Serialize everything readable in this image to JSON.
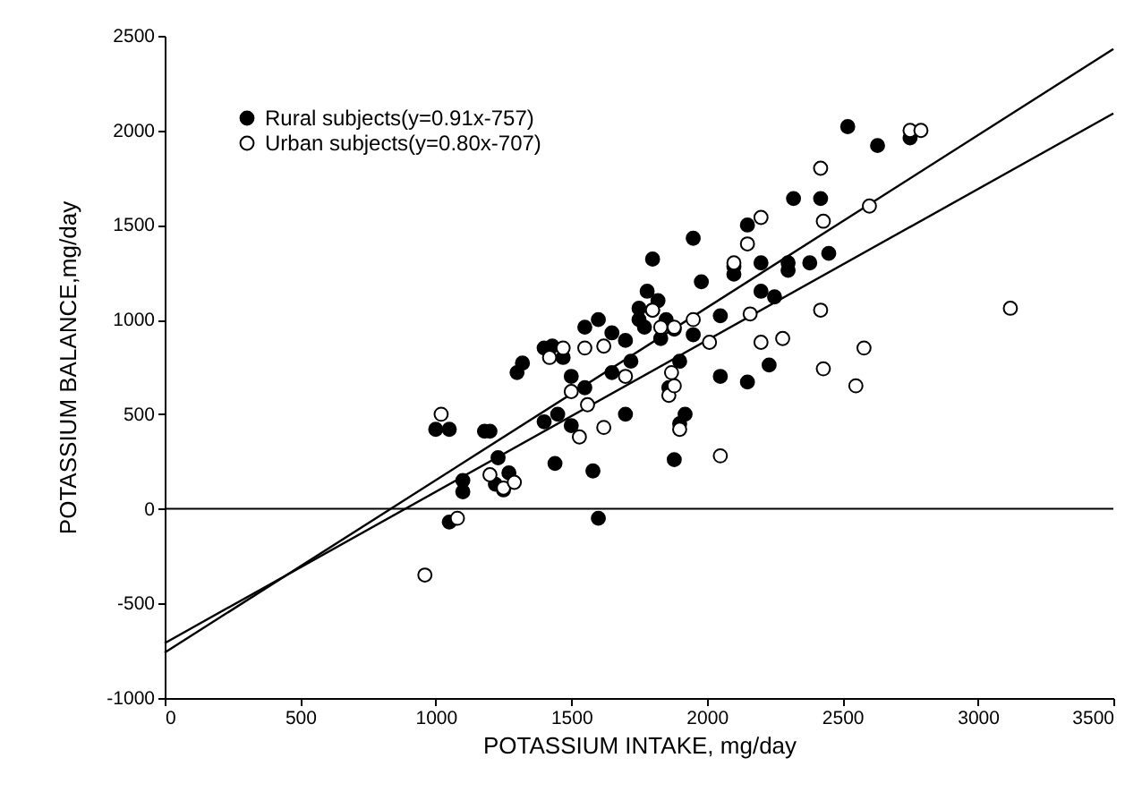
{
  "chart_data": {
    "type": "scatter",
    "xlabel": "POTASSIUM  INTAKE, mg/day",
    "ylabel": "POTASSIUM BALANCE,mg/day",
    "xlim": [
      0,
      3500
    ],
    "xticks": [
      0,
      500,
      1000,
      1500,
      2000,
      2500,
      3000,
      3500
    ],
    "ylim": [
      -1000,
      2500
    ],
    "yticks": [
      -1000,
      -500,
      0,
      500,
      1000,
      1500,
      2000,
      2500
    ],
    "grid": false,
    "legend": "top left",
    "marker": "circle",
    "ref_lines": [
      {
        "axis": "y",
        "value": 0
      }
    ],
    "series": [
      {
        "name": "Rural subjects(y=0.91x-757)",
        "color": "#000000",
        "x": [
          1000,
          1050,
          1180,
          1200,
          1100,
          1100,
          1050,
          1230,
          1270,
          1220,
          1320,
          1300,
          1400,
          1430,
          1470,
          1450,
          1440,
          1500,
          1550,
          1600,
          1580,
          1650,
          1700,
          1750,
          1780,
          1800,
          1770,
          1720,
          1800,
          1850,
          1830,
          1880,
          1900,
          1860,
          1900,
          1920,
          1950,
          1980,
          2050,
          2100,
          2150,
          2200,
          2250,
          2300,
          2320,
          2420,
          2200,
          2380,
          2450,
          2520,
          2630,
          2750,
          2150,
          2230,
          1600,
          1550,
          1650,
          1700,
          1400,
          1250,
          1500,
          1880,
          1950,
          2050,
          1820,
          1750,
          2100,
          2300
        ],
        "values": [
          420,
          420,
          410,
          410,
          90,
          150,
          -70,
          270,
          190,
          130,
          770,
          720,
          850,
          860,
          800,
          500,
          240,
          700,
          640,
          -50,
          200,
          930,
          890,
          1000,
          1150,
          1320,
          960,
          780,
          1050,
          1000,
          900,
          950,
          780,
          640,
          450,
          500,
          1430,
          1200,
          1020,
          1240,
          1500,
          1150,
          1120,
          1300,
          1640,
          1640,
          1300,
          1300,
          1350,
          2020,
          1920,
          1960,
          670,
          760,
          1000,
          960,
          720,
          500,
          460,
          100,
          440,
          260,
          920,
          700,
          1100,
          1060,
          1280,
          1260
        ]
      },
      {
        "name": "Urban subjects(y=0.80x-707)",
        "color": "#ffffff",
        "x": [
          960,
          1080,
          1020,
          1250,
          1200,
          1290,
          1420,
          1470,
          1550,
          1560,
          1530,
          1500,
          1620,
          1700,
          1800,
          1830,
          1860,
          1870,
          1900,
          1880,
          1950,
          2050,
          2010,
          2100,
          2160,
          2200,
          2150,
          2200,
          2280,
          2420,
          2430,
          2550,
          2580,
          2430,
          2420,
          2600,
          2750,
          2790,
          3120,
          1620,
          1880
        ],
        "values": [
          -350,
          -50,
          500,
          110,
          180,
          140,
          800,
          850,
          850,
          550,
          380,
          620,
          430,
          700,
          1050,
          960,
          600,
          720,
          420,
          960,
          1000,
          280,
          880,
          1300,
          1030,
          1540,
          1400,
          880,
          900,
          1050,
          740,
          650,
          850,
          1520,
          1800,
          1600,
          2000,
          2000,
          1060,
          860,
          650
        ]
      },
      {
        "type": "line",
        "color": "#000000",
        "marker": "none",
        "line_style": "solid",
        "x": [
          0,
          3500
        ],
        "values": [
          -760,
          2430
        ]
      },
      {
        "type": "line",
        "color": "#000000",
        "marker": "none",
        "line_style": "solid",
        "x": [
          0,
          3500
        ],
        "values": [
          -710,
          2090
        ]
      }
    ]
  }
}
